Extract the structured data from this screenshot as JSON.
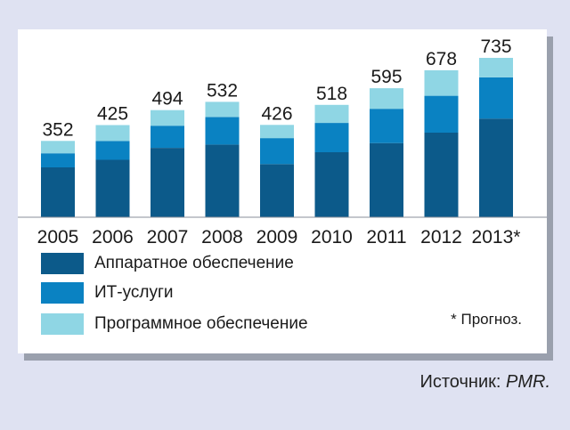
{
  "chart_data": {
    "type": "bar",
    "stacked": true,
    "categories": [
      "2005",
      "2006",
      "2007",
      "2008",
      "2009",
      "2010",
      "2011",
      "2012",
      "2013*"
    ],
    "totals": [
      352,
      425,
      494,
      532,
      426,
      518,
      595,
      678,
      735
    ],
    "series": [
      {
        "name": "Аппаратное обеспечение",
        "color": "#0c5a8a",
        "values": [
          230,
          265,
          320,
          335,
          245,
          300,
          342,
          390,
          455
        ]
      },
      {
        "name": "ИТ-услуги",
        "color": "#0a82c2",
        "values": [
          65,
          87,
          102,
          127,
          120,
          135,
          158,
          170,
          190
        ]
      },
      {
        "name": "Программное обеспечение",
        "color": "#8fd6e4",
        "values": [
          57,
          73,
          72,
          70,
          61,
          83,
          95,
          118,
          90
        ]
      }
    ],
    "ylim": [
      0,
      800
    ],
    "grid": false,
    "legend_position": "bottom-left"
  },
  "note": "* Прогноз.",
  "source": {
    "label": "Источник: ",
    "name": "PMR."
  }
}
